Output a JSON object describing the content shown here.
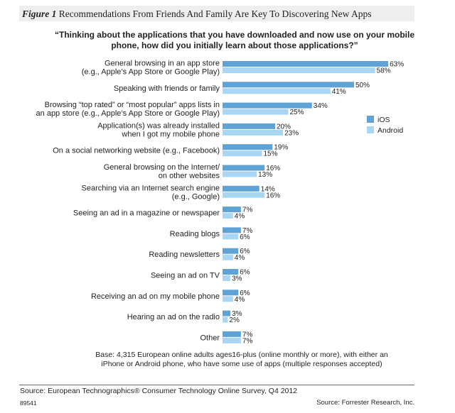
{
  "figure": {
    "number_label": "Figure 1",
    "title": "Recommendations From Friends And Family Are Key To Discovering New Apps"
  },
  "question": "“Thinking about the applications that you have downloaded and now use on your mobile phone, how did you initially learn about those applications?”",
  "base_note": "Base: 4,315 European online adults ages16-plus (online monthly or more), with either an iPhone or Android phone, who have some use of apps (multiple responses accepted)",
  "source": "Source: European Technographics® Consumer Technology Online Survey, Q4 2012",
  "doc_id": "89541",
  "copyright": "Source: Forrester Research, Inc.",
  "colors": {
    "ios": "#5fa3d6",
    "android": "#a9d6f2"
  },
  "chart_data": {
    "type": "bar",
    "orientation": "horizontal",
    "value_suffix": "%",
    "legend_position": "right",
    "categories": [
      [
        "General browsing in an app store",
        "(e.g., Apple’s App Store or Google Play)"
      ],
      [
        "Speaking with friends or family"
      ],
      [
        "Browsing “top rated” or “most popular” apps lists in",
        "an app store (e.g., Apple’s App Store or Google Play)"
      ],
      [
        "Application(s) was already installed",
        "when I got my mobile phone"
      ],
      [
        "On a social networking website (e.g., Facebook)"
      ],
      [
        "General browsing on the Internet/",
        "on other websites"
      ],
      [
        "Searching via an Internet search engine",
        "(e.g., Google)"
      ],
      [
        "Seeing an ad in a magazine or newspaper"
      ],
      [
        "Reading blogs"
      ],
      [
        "Reading newsletters"
      ],
      [
        "Seeing an ad on TV"
      ],
      [
        "Receiving an ad on my mobile phone"
      ],
      [
        "Hearing an ad on the radio"
      ],
      [
        "Other"
      ]
    ],
    "series": [
      {
        "name": "iOS",
        "values": [
          63,
          50,
          34,
          20,
          19,
          16,
          14,
          7,
          7,
          6,
          6,
          6,
          3,
          7
        ]
      },
      {
        "name": "Android",
        "values": [
          58,
          41,
          25,
          23,
          15,
          13,
          16,
          4,
          6,
          4,
          3,
          4,
          2,
          7
        ]
      }
    ]
  }
}
